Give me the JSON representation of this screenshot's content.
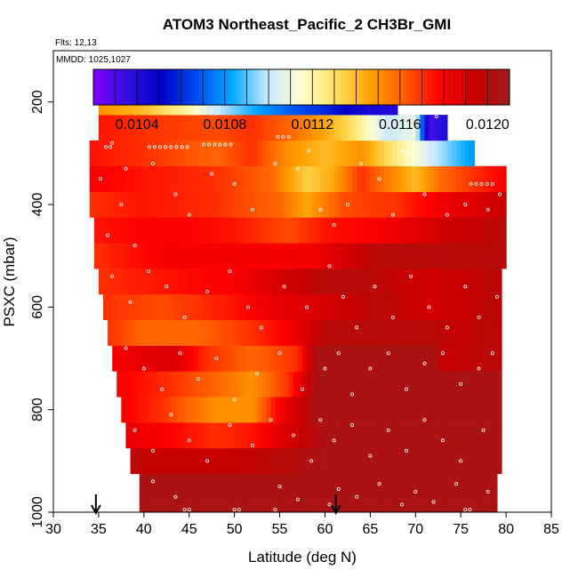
{
  "chart_data": {
    "type": "heatmap",
    "title": "ATOM3 Northeast_Pacific_2 CH3Br_GMI",
    "flights_text": "Flts: 12,13",
    "mmdd_text": "MMDD: 1025,1027",
    "xlabel": "Latitude (deg N)",
    "ylabel": "PSXC (mbar)",
    "xlim": [
      30,
      85
    ],
    "ylim": [
      1000,
      100
    ],
    "x_ticks": [
      30,
      35,
      40,
      45,
      50,
      55,
      60,
      65,
      70,
      75,
      80,
      85
    ],
    "x_tick_labels": [
      "30",
      "35",
      "40",
      "45",
      "50",
      "55",
      "60",
      "65",
      "70",
      "75",
      "80",
      "85"
    ],
    "y_ticks": [
      200,
      400,
      600,
      800,
      1000
    ],
    "y_tick_labels": [
      "200",
      "400",
      "600",
      "800",
      "1000"
    ],
    "colorbar": {
      "min": 0.0102,
      "max": 0.0121,
      "ticks": [
        0.0104,
        0.0108,
        0.0112,
        0.0116,
        0.012
      ],
      "tick_labels": [
        "0.0104",
        "0.0108",
        "0.0112",
        "0.0116",
        "0.0120"
      ],
      "stops": [
        "#7f00ff",
        "#3010e0",
        "#0000c8",
        "#0050f0",
        "#00a8ff",
        "#c8e8ff",
        "#ffffd0",
        "#ffe060",
        "#ffa000",
        "#ff5a00",
        "#ff0000",
        "#c80000",
        "#9e1c1c"
      ]
    },
    "arrows_latitude": [
      34.7,
      61.2
    ],
    "row_height_mbar": 50,
    "rows": [
      {
        "p": 1000,
        "x0": 39.5,
        "x1": 79,
        "v": [
          [
            39.5,
            0.01205
          ]
        ]
      },
      {
        "p": 950,
        "x0": 39.5,
        "x1": 79,
        "v": [
          [
            39.5,
            0.01205
          ]
        ]
      },
      {
        "p": 900,
        "x0": 38.5,
        "x1": 79.5,
        "v": [
          [
            38.5,
            0.012
          ],
          [
            40,
            0.01195
          ],
          [
            50,
            0.01195
          ],
          [
            55,
            0.012
          ],
          [
            60,
            0.01205
          ],
          [
            79.5,
            0.01205
          ]
        ]
      },
      {
        "p": 850,
        "x0": 38,
        "x1": 79.5,
        "v": [
          [
            38,
            0.01185
          ],
          [
            42,
            0.0118
          ],
          [
            48,
            0.0117
          ],
          [
            52,
            0.01175
          ],
          [
            56,
            0.0119
          ],
          [
            60,
            0.01205
          ],
          [
            79.5,
            0.01205
          ]
        ]
      },
      {
        "p": 800,
        "x0": 37.5,
        "x1": 79.5,
        "v": [
          [
            37.5,
            0.0118
          ],
          [
            42,
            0.0117
          ],
          [
            48,
            0.0115
          ],
          [
            52,
            0.0115
          ],
          [
            55,
            0.0118
          ],
          [
            59,
            0.01205
          ],
          [
            79.5,
            0.01205
          ]
        ]
      },
      {
        "p": 750,
        "x0": 37,
        "x1": 79.5,
        "v": [
          [
            37,
            0.0118
          ],
          [
            43,
            0.0117
          ],
          [
            48,
            0.0116
          ],
          [
            52,
            0.0115
          ],
          [
            56,
            0.0117
          ],
          [
            59,
            0.01205
          ],
          [
            79.5,
            0.01205
          ]
        ]
      },
      {
        "p": 700,
        "x0": 36.5,
        "x1": 79.5,
        "v": [
          [
            36.5,
            0.0118
          ],
          [
            43,
            0.0119
          ],
          [
            47,
            0.0117
          ],
          [
            52,
            0.0116
          ],
          [
            57,
            0.0117
          ],
          [
            59,
            0.01205
          ],
          [
            72,
            0.01205
          ],
          [
            73,
            0.01195
          ],
          [
            79.5,
            0.012
          ]
        ]
      },
      {
        "p": 650,
        "x0": 36,
        "x1": 79.5,
        "v": [
          [
            36,
            0.0117
          ],
          [
            40,
            0.0116
          ],
          [
            46,
            0.0116
          ],
          [
            52,
            0.0117
          ],
          [
            56,
            0.0118
          ],
          [
            60,
            0.012
          ],
          [
            72,
            0.012
          ],
          [
            74,
            0.01195
          ],
          [
            79.5,
            0.012
          ]
        ]
      },
      {
        "p": 600,
        "x0": 35.5,
        "x1": 79.5,
        "v": [
          [
            35.5,
            0.0117
          ],
          [
            42,
            0.01165
          ],
          [
            50,
            0.01175
          ],
          [
            55,
            0.01185
          ],
          [
            60,
            0.0119
          ],
          [
            66,
            0.012
          ],
          [
            72,
            0.0119
          ],
          [
            79.5,
            0.012
          ]
        ]
      },
      {
        "p": 550,
        "x0": 35,
        "x1": 79.5,
        "v": [
          [
            35,
            0.0117
          ],
          [
            42,
            0.01175
          ],
          [
            50,
            0.0118
          ],
          [
            55,
            0.0119
          ],
          [
            60,
            0.012
          ],
          [
            65,
            0.012
          ],
          [
            72,
            0.0119
          ],
          [
            79.5,
            0.012
          ]
        ]
      },
      {
        "p": 500,
        "x0": 34.5,
        "x1": 80,
        "v": [
          [
            34.5,
            0.0117
          ],
          [
            42,
            0.0118
          ],
          [
            52,
            0.0118
          ],
          [
            58,
            0.0118
          ],
          [
            62,
            0.0119
          ],
          [
            66,
            0.012
          ],
          [
            72,
            0.012
          ],
          [
            80,
            0.012
          ]
        ]
      },
      {
        "p": 450,
        "x0": 34.5,
        "x1": 80,
        "v": [
          [
            34.5,
            0.01175
          ],
          [
            42,
            0.0118
          ],
          [
            50,
            0.01175
          ],
          [
            56,
            0.01165
          ],
          [
            60,
            0.01175
          ],
          [
            66,
            0.0118
          ],
          [
            72,
            0.0119
          ],
          [
            80,
            0.012
          ]
        ]
      },
      {
        "p": 400,
        "x0": 34,
        "x1": 80,
        "v": [
          [
            34,
            0.0117
          ],
          [
            40,
            0.01175
          ],
          [
            48,
            0.0117
          ],
          [
            55,
            0.0116
          ],
          [
            58,
            0.01145
          ],
          [
            62,
            0.01165
          ],
          [
            68,
            0.0117
          ],
          [
            72,
            0.0118
          ],
          [
            80,
            0.01195
          ]
        ]
      },
      {
        "p": 350,
        "x0": 34,
        "x1": 80,
        "v": [
          [
            34,
            0.0118
          ],
          [
            40,
            0.01175
          ],
          [
            48,
            0.0117
          ],
          [
            54,
            0.0116
          ],
          [
            58,
            0.01135
          ],
          [
            61,
            0.01145
          ],
          [
            64,
            0.0117
          ],
          [
            70,
            0.0114
          ],
          [
            73,
            0.0116
          ],
          [
            80,
            0.0118
          ]
        ]
      },
      {
        "p": 300,
        "x0": 34,
        "x1": 76.5,
        "v": [
          [
            34,
            0.01175
          ],
          [
            40,
            0.0117
          ],
          [
            48,
            0.0116
          ],
          [
            52,
            0.0117
          ],
          [
            56,
            0.0115
          ],
          [
            60,
            0.0114
          ],
          [
            64,
            0.0115
          ],
          [
            68,
            0.01125
          ],
          [
            72,
            0.011
          ],
          [
            76.5,
            0.0108
          ]
        ]
      },
      {
        "p": 250,
        "x0": 35,
        "x1": 73.5,
        "v": [
          [
            35,
            0.01175
          ],
          [
            40,
            0.0117
          ],
          [
            48,
            0.01165
          ],
          [
            52,
            0.0117
          ],
          [
            56,
            0.0116
          ],
          [
            60,
            0.01145
          ],
          [
            63,
            0.0113
          ],
          [
            67,
            0.011
          ],
          [
            70,
            0.0111
          ],
          [
            71.5,
            0.0103
          ],
          [
            73,
            0.0104
          ]
        ]
      },
      {
        "p": 200,
        "x0": 35,
        "x1": 68,
        "v": [
          [
            35,
            0.0115
          ],
          [
            40,
            0.0114
          ],
          [
            45,
            0.0112
          ],
          [
            48,
            0.011
          ],
          [
            52,
            0.01085
          ],
          [
            56,
            0.0107
          ],
          [
            60,
            0.0106
          ],
          [
            64,
            0.01045
          ],
          [
            68,
            0.0104
          ]
        ]
      }
    ],
    "points": [
      {
        "x": 62.9,
        "y": 185
      },
      {
        "x": 63.5,
        "y": 185
      },
      {
        "x": 64.1,
        "y": 185
      },
      {
        "x": 64.7,
        "y": 185
      },
      {
        "x": 65.3,
        "y": 185
      },
      {
        "x": 65.9,
        "y": 185
      },
      {
        "x": 66.5,
        "y": 185
      },
      {
        "x": 67.1,
        "y": 185
      },
      {
        "x": 35.3,
        "y": 192
      },
      {
        "x": 35.9,
        "y": 192
      },
      {
        "x": 36.5,
        "y": 192
      },
      {
        "x": 72.3,
        "y": 228
      },
      {
        "x": 54.8,
        "y": 268
      },
      {
        "x": 55.4,
        "y": 268
      },
      {
        "x": 56.0,
        "y": 268
      },
      {
        "x": 35.8,
        "y": 288
      },
      {
        "x": 36.3,
        "y": 288
      },
      {
        "x": 40.6,
        "y": 288
      },
      {
        "x": 41.2,
        "y": 288
      },
      {
        "x": 41.8,
        "y": 288
      },
      {
        "x": 42.4,
        "y": 288
      },
      {
        "x": 43.0,
        "y": 288
      },
      {
        "x": 43.6,
        "y": 288
      },
      {
        "x": 44.2,
        "y": 288
      },
      {
        "x": 44.8,
        "y": 288
      },
      {
        "x": 46.6,
        "y": 283
      },
      {
        "x": 47.2,
        "y": 283
      },
      {
        "x": 47.8,
        "y": 283
      },
      {
        "x": 48.4,
        "y": 283
      },
      {
        "x": 49.0,
        "y": 283
      },
      {
        "x": 49.6,
        "y": 283
      },
      {
        "x": 58.2,
        "y": 295
      },
      {
        "x": 68.5,
        "y": 295
      },
      {
        "x": 76.1,
        "y": 360
      },
      {
        "x": 76.7,
        "y": 360
      },
      {
        "x": 77.3,
        "y": 360
      },
      {
        "x": 77.9,
        "y": 360
      },
      {
        "x": 78.5,
        "y": 360
      },
      {
        "x": 36.5,
        "y": 280
      },
      {
        "x": 38.0,
        "y": 330
      },
      {
        "x": 35.2,
        "y": 350
      },
      {
        "x": 37.5,
        "y": 400
      },
      {
        "x": 36.0,
        "y": 460
      },
      {
        "x": 39.0,
        "y": 480
      },
      {
        "x": 41.0,
        "y": 320
      },
      {
        "x": 43.5,
        "y": 380
      },
      {
        "x": 45.0,
        "y": 420
      },
      {
        "x": 47.5,
        "y": 340
      },
      {
        "x": 50.0,
        "y": 360
      },
      {
        "x": 52.0,
        "y": 410
      },
      {
        "x": 54.5,
        "y": 320
      },
      {
        "x": 57.0,
        "y": 330
      },
      {
        "x": 59.5,
        "y": 410
      },
      {
        "x": 61.0,
        "y": 440
      },
      {
        "x": 62.5,
        "y": 400
      },
      {
        "x": 64.0,
        "y": 320
      },
      {
        "x": 66.0,
        "y": 350
      },
      {
        "x": 67.5,
        "y": 420
      },
      {
        "x": 69.0,
        "y": 300
      },
      {
        "x": 71.0,
        "y": 380
      },
      {
        "x": 73.5,
        "y": 420
      },
      {
        "x": 75.5,
        "y": 400
      },
      {
        "x": 78.0,
        "y": 410
      },
      {
        "x": 79.3,
        "y": 380
      },
      {
        "x": 36.5,
        "y": 540
      },
      {
        "x": 38.5,
        "y": 590
      },
      {
        "x": 40.5,
        "y": 530
      },
      {
        "x": 42.5,
        "y": 560
      },
      {
        "x": 44.5,
        "y": 620
      },
      {
        "x": 47.0,
        "y": 570
      },
      {
        "x": 49.5,
        "y": 530
      },
      {
        "x": 51.5,
        "y": 600
      },
      {
        "x": 53.0,
        "y": 640
      },
      {
        "x": 55.5,
        "y": 560
      },
      {
        "x": 58.0,
        "y": 600
      },
      {
        "x": 60.5,
        "y": 520
      },
      {
        "x": 62.0,
        "y": 580
      },
      {
        "x": 63.5,
        "y": 640
      },
      {
        "x": 65.5,
        "y": 560
      },
      {
        "x": 67.5,
        "y": 620
      },
      {
        "x": 69.5,
        "y": 540
      },
      {
        "x": 71.5,
        "y": 600
      },
      {
        "x": 73.5,
        "y": 640
      },
      {
        "x": 75.5,
        "y": 560
      },
      {
        "x": 77.0,
        "y": 620
      },
      {
        "x": 79.0,
        "y": 580
      },
      {
        "x": 38.0,
        "y": 680
      },
      {
        "x": 40.0,
        "y": 720
      },
      {
        "x": 42.0,
        "y": 760
      },
      {
        "x": 44.0,
        "y": 690
      },
      {
        "x": 46.0,
        "y": 740
      },
      {
        "x": 48.0,
        "y": 700
      },
      {
        "x": 50.0,
        "y": 780
      },
      {
        "x": 52.5,
        "y": 730
      },
      {
        "x": 55.0,
        "y": 690
      },
      {
        "x": 57.5,
        "y": 760
      },
      {
        "x": 60.0,
        "y": 720
      },
      {
        "x": 61.5,
        "y": 690
      },
      {
        "x": 63.0,
        "y": 770
      },
      {
        "x": 65.0,
        "y": 720
      },
      {
        "x": 67.0,
        "y": 690
      },
      {
        "x": 69.0,
        "y": 760
      },
      {
        "x": 71.0,
        "y": 710
      },
      {
        "x": 73.0,
        "y": 690
      },
      {
        "x": 75.0,
        "y": 750
      },
      {
        "x": 77.0,
        "y": 720
      },
      {
        "x": 78.5,
        "y": 690
      },
      {
        "x": 39.0,
        "y": 840
      },
      {
        "x": 41.0,
        "y": 880
      },
      {
        "x": 43.0,
        "y": 810
      },
      {
        "x": 45.0,
        "y": 860
      },
      {
        "x": 47.0,
        "y": 900
      },
      {
        "x": 49.5,
        "y": 830
      },
      {
        "x": 52.0,
        "y": 870
      },
      {
        "x": 54.0,
        "y": 820
      },
      {
        "x": 56.5,
        "y": 850
      },
      {
        "x": 58.5,
        "y": 900
      },
      {
        "x": 59.5,
        "y": 820
      },
      {
        "x": 61.0,
        "y": 860
      },
      {
        "x": 63.0,
        "y": 830
      },
      {
        "x": 65.0,
        "y": 890
      },
      {
        "x": 67.0,
        "y": 840
      },
      {
        "x": 69.0,
        "y": 880
      },
      {
        "x": 71.0,
        "y": 820
      },
      {
        "x": 73.0,
        "y": 860
      },
      {
        "x": 75.0,
        "y": 900
      },
      {
        "x": 77.5,
        "y": 840
      },
      {
        "x": 41.0,
        "y": 940
      },
      {
        "x": 43.5,
        "y": 970
      },
      {
        "x": 44.5,
        "y": 995
      },
      {
        "x": 45.0,
        "y": 995
      },
      {
        "x": 50.0,
        "y": 995
      },
      {
        "x": 50.5,
        "y": 995
      },
      {
        "x": 54.5,
        "y": 995
      },
      {
        "x": 55.0,
        "y": 950
      },
      {
        "x": 57.0,
        "y": 975
      },
      {
        "x": 60.5,
        "y": 985
      },
      {
        "x": 61.5,
        "y": 955
      },
      {
        "x": 63.5,
        "y": 970
      },
      {
        "x": 66.0,
        "y": 945
      },
      {
        "x": 68.5,
        "y": 985
      },
      {
        "x": 70.0,
        "y": 960
      },
      {
        "x": 72.0,
        "y": 980
      },
      {
        "x": 74.5,
        "y": 945
      },
      {
        "x": 75.5,
        "y": 995
      },
      {
        "x": 76.0,
        "y": 995
      },
      {
        "x": 78.0,
        "y": 960
      }
    ]
  }
}
